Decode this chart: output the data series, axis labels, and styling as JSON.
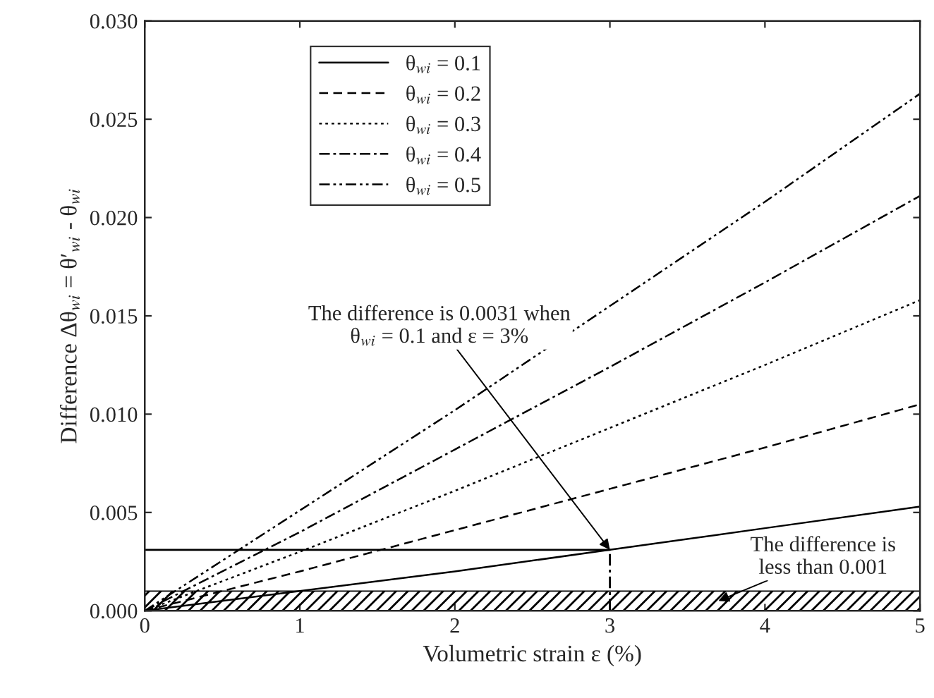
{
  "chart_data": {
    "type": "line",
    "xlabel": "Volumetric strain ε (%)",
    "ylabel": "Difference Δθ$_{wi}$ = θ′$_{wi}$ - θ$_{wi}$",
    "x": [
      0,
      1,
      2,
      3,
      4,
      5
    ],
    "series": [
      {
        "name": "θ$_{wi}$ = 0.1",
        "color": "#000000",
        "line_style": "solid",
        "values": [
          0,
          0.001,
          0.002,
          0.0031,
          0.0042,
          0.0053
        ]
      },
      {
        "name": "θ$_{wi}$ = 0.2",
        "color": "#000000",
        "line_style": "dashed",
        "values": [
          0,
          0.002,
          0.0041,
          0.0062,
          0.0083,
          0.0105
        ]
      },
      {
        "name": "θ$_{wi}$ = 0.3",
        "color": "#000000",
        "line_style": "dotted",
        "values": [
          0,
          0.003,
          0.0061,
          0.0093,
          0.0125,
          0.0158
        ]
      },
      {
        "name": "θ$_{wi}$ = 0.4",
        "color": "#000000",
        "line_style": "dashdot",
        "values": [
          0,
          0.004,
          0.0082,
          0.0124,
          0.0167,
          0.0211
        ]
      },
      {
        "name": "θ$_{wi}$ = 0.5",
        "color": "#000000",
        "line_style": "dashdotdot",
        "values": [
          0,
          0.0051,
          0.0102,
          0.0155,
          0.0208,
          0.0263
        ]
      }
    ],
    "xlim": [
      0,
      5
    ],
    "xticks": [
      0,
      1,
      2,
      3,
      4,
      5
    ],
    "ylim": [
      0,
      0.03
    ],
    "yticks": [
      {
        "value": 0,
        "label": "0.000"
      },
      {
        "value": 0.005,
        "label": "0.005"
      },
      {
        "value": 0.01,
        "label": "0.010"
      },
      {
        "value": 0.015,
        "label": "0.015"
      },
      {
        "value": 0.02,
        "label": "0.020"
      },
      {
        "value": 0.025,
        "label": "0.025"
      },
      {
        "value": 0.03,
        "label": "0.030"
      }
    ],
    "ref_lines": [
      {
        "axis": "y",
        "value": 0.0031,
        "color": "#000000",
        "line_style": "solid"
      },
      {
        "axis": "x",
        "value": 3,
        "color": "#000000",
        "line_style": "dashdot"
      }
    ],
    "bands": [
      {
        "axis": "y",
        "from": 0,
        "to": 0.001,
        "color": "#000000"
      }
    ],
    "annotations": [
      {
        "text": "The difference is 0.0031 when\nθ$_{wi}$ = 0.1 and ε = 3%",
        "x": 3,
        "y": 0.0031
      },
      "The difference is\nless than 0.001"
    ],
    "legend": "top left",
    "grid": false,
    "marker": "none"
  }
}
